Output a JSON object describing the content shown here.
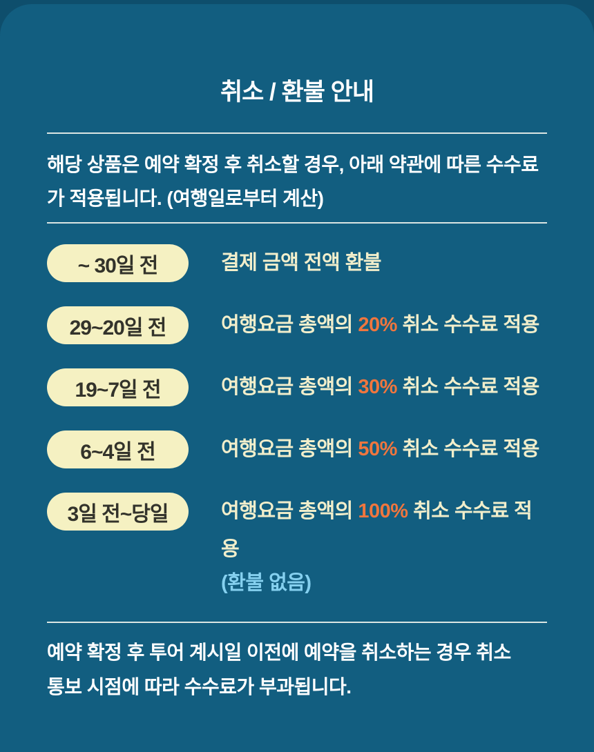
{
  "colors": {
    "page_background": "#0e4e6c",
    "card_background": "#125e80",
    "divider": "#edf2ec",
    "badge_background": "#f5f1c2",
    "badge_text": "#33332b",
    "description_text": "#f1eecb",
    "percent_highlight": "#f0763e",
    "note_blue": "#85d0ef",
    "title_text": "#ffffff"
  },
  "title": "취소 / 환불 안내",
  "intro": {
    "line1": "해당 상품은 예약 확정 후 취소할 경우, 아래 약관에 따른 수수료",
    "line2": "가 적용됩니다. (여행일로부터 계산)"
  },
  "rows": [
    {
      "badge": "~ 30일 전",
      "pre": "결제 금액 전액 환불",
      "percent": "",
      "post": ""
    },
    {
      "badge": "29~20일 전",
      "pre": "여행요금 총액의 ",
      "percent": "20%",
      "post": " 취소 수수료 적용"
    },
    {
      "badge": "19~7일 전",
      "pre": "여행요금 총액의 ",
      "percent": "30%",
      "post": " 취소 수수료 적용"
    },
    {
      "badge": "6~4일 전",
      "pre": "여행요금 총액의 ",
      "percent": "50%",
      "post": " 취소 수수료 적용"
    },
    {
      "badge": "3일 전~당일",
      "pre": "여행요금 총액의 ",
      "percent": "100%",
      "post": " 취소 수수료 적용",
      "note": "(환불 없음)"
    }
  ],
  "footer": {
    "line1": "예약 확정 후 투어 계시일 이전에 예약을 취소하는 경우 취소",
    "line2": "통보 시점에 따라 수수료가 부과됩니다."
  }
}
